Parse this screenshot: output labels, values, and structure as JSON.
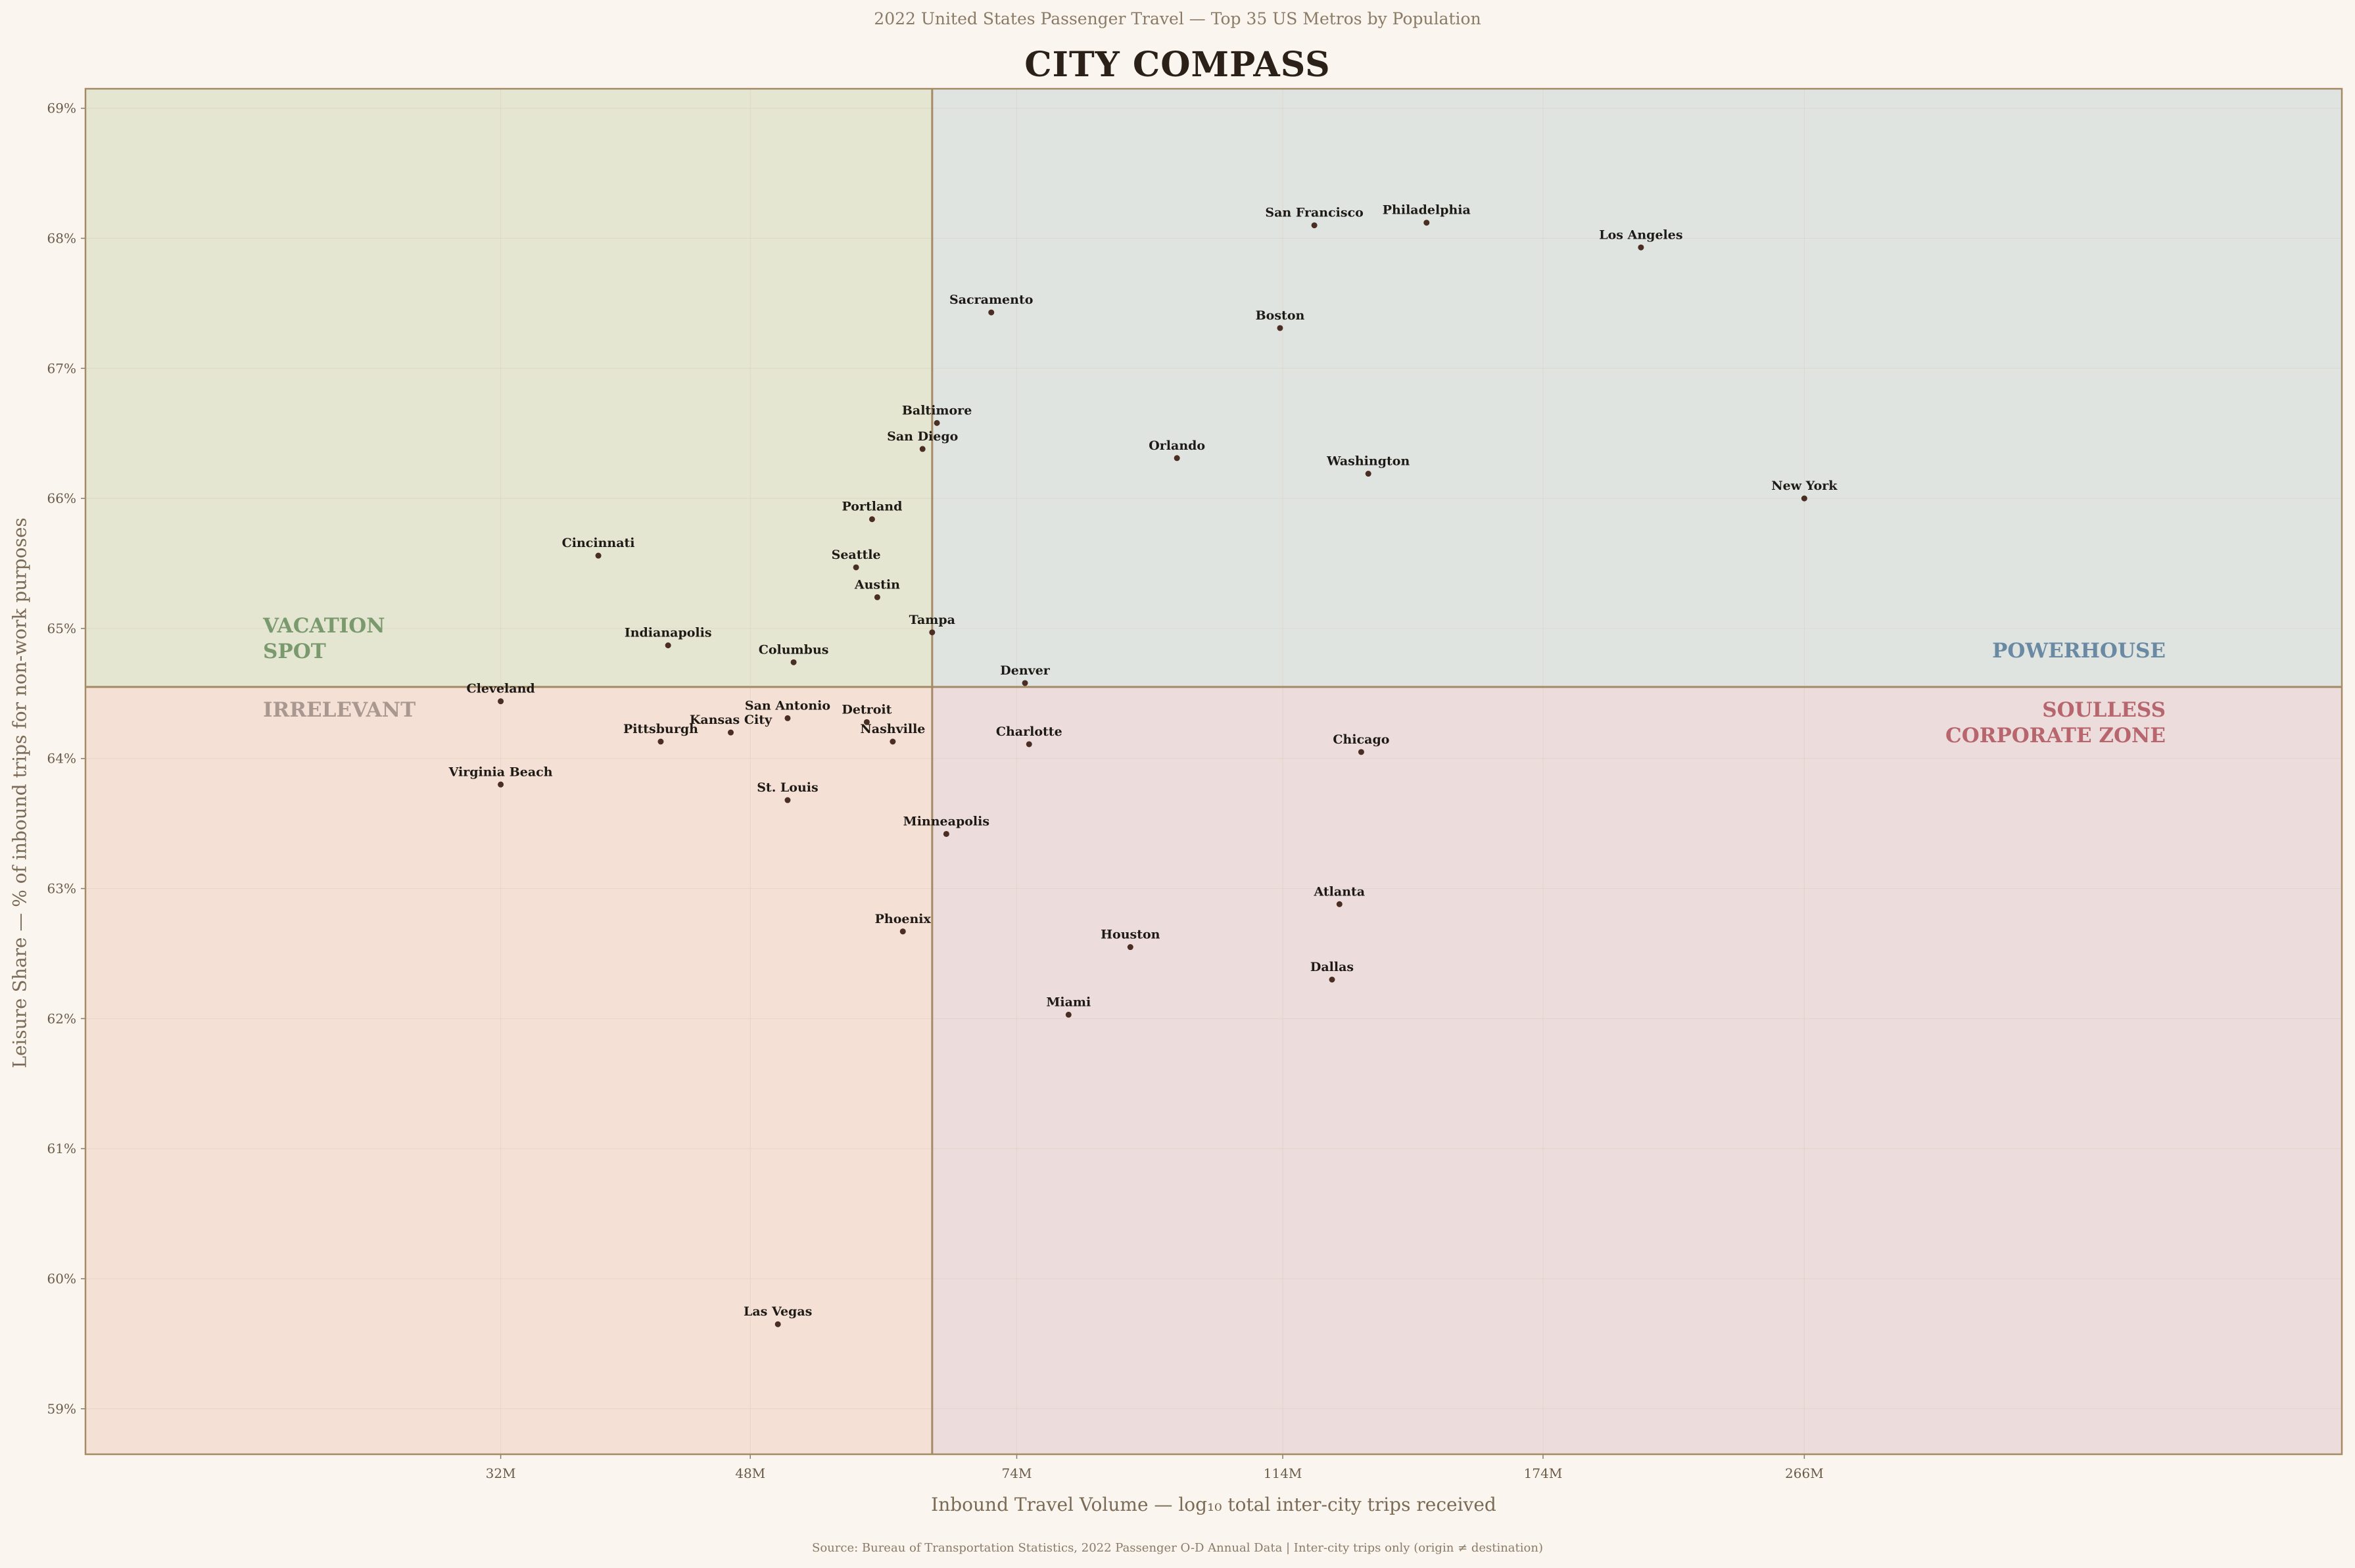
{
  "supertitle": "2022 United States Passenger Travel  —  Top 35 US Metros by Population",
  "title": "CITY COMPASS",
  "source": "Source: Bureau of Transportation Statistics, 2022 Passenger O-D Annual Data  |  Inter-city trips only (origin ≠ destination)",
  "colors": {
    "vacation": "#e4e6d2",
    "powerhouse": "#e0e4e1",
    "irrelevant": "#f5e0d5",
    "soulless": "#ecdcdc",
    "divider": "#a58a66",
    "point": "#4a2e24",
    "vacation_label": "#7a9a6e",
    "powerhouse_label": "#6a8aa4",
    "irrelevant_label": "#a89890",
    "soulless_label": "#b8666e"
  },
  "chart_data": {
    "type": "scatter",
    "title": "CITY COMPASS",
    "xlabel": "Inbound Travel Volume  —  log₁₀ total inter-city trips received",
    "ylabel": "Leisure Share  —  % of inbound trips for non-work purposes",
    "x_scale": "log10",
    "x_unit": "M trips",
    "xlim": [
      16.3,
      637
    ],
    "ylim": [
      58.65,
      69.15
    ],
    "x_ticks": [
      32,
      48,
      74,
      114,
      174,
      266
    ],
    "x_tick_labels": [
      "32M",
      "48M",
      "74M",
      "114M",
      "174M",
      "266M"
    ],
    "y_ticks": [
      59,
      60,
      61,
      62,
      63,
      64,
      65,
      66,
      67,
      68,
      69
    ],
    "y_tick_labels": [
      "59%",
      "60%",
      "61%",
      "62%",
      "63%",
      "64%",
      "65%",
      "66%",
      "67%",
      "68%",
      "69%"
    ],
    "grid": true,
    "divider_x": 64.5,
    "divider_y": 64.55,
    "quadrants": [
      {
        "label_lines": [
          "VACATION",
          "SPOT"
        ],
        "position": "left-middle"
      },
      {
        "label_lines": [
          "POWERHOUSE"
        ],
        "position": "right-middle"
      },
      {
        "label_lines": [
          "IRRELEVANT"
        ],
        "position": "left-middle"
      },
      {
        "label_lines": [
          "SOULLESS",
          "CORPORATE ZONE"
        ],
        "position": "right-middle"
      }
    ],
    "points": [
      {
        "name": "Philadelphia",
        "x": 144,
        "y": 68.12
      },
      {
        "name": "San Francisco",
        "x": 120,
        "y": 68.1
      },
      {
        "name": "Los Angeles",
        "x": 204,
        "y": 67.93
      },
      {
        "name": "Sacramento",
        "x": 71,
        "y": 67.43
      },
      {
        "name": "Boston",
        "x": 113.5,
        "y": 67.31
      },
      {
        "name": "Baltimore",
        "x": 65,
        "y": 66.58
      },
      {
        "name": "San Diego",
        "x": 63.5,
        "y": 66.38
      },
      {
        "name": "Orlando",
        "x": 96,
        "y": 66.31
      },
      {
        "name": "Washington",
        "x": 131,
        "y": 66.19
      },
      {
        "name": "New York",
        "x": 266,
        "y": 66.0
      },
      {
        "name": "Portland",
        "x": 58.5,
        "y": 65.84
      },
      {
        "name": "Cincinnati",
        "x": 37.5,
        "y": 65.56
      },
      {
        "name": "Seattle",
        "x": 57,
        "y": 65.47
      },
      {
        "name": "Austin",
        "x": 59,
        "y": 65.24
      },
      {
        "name": "Tampa",
        "x": 64.5,
        "y": 64.97
      },
      {
        "name": "Indianapolis",
        "x": 42,
        "y": 64.87
      },
      {
        "name": "Columbus",
        "x": 51.5,
        "y": 64.74
      },
      {
        "name": "Denver",
        "x": 75,
        "y": 64.58
      },
      {
        "name": "Cleveland",
        "x": 32,
        "y": 64.44
      },
      {
        "name": "San Antonio",
        "x": 51,
        "y": 64.31
      },
      {
        "name": "Detroit",
        "x": 58,
        "y": 64.28
      },
      {
        "name": "Kansas City",
        "x": 46.5,
        "y": 64.2
      },
      {
        "name": "Pittsburgh",
        "x": 41.5,
        "y": 64.13
      },
      {
        "name": "Nashville",
        "x": 60.5,
        "y": 64.13
      },
      {
        "name": "Charlotte",
        "x": 75.5,
        "y": 64.11
      },
      {
        "name": "Chicago",
        "x": 129.5,
        "y": 64.05
      },
      {
        "name": "Virginia Beach",
        "x": 32,
        "y": 63.8
      },
      {
        "name": "St. Louis",
        "x": 51,
        "y": 63.68
      },
      {
        "name": "Minneapolis",
        "x": 66,
        "y": 63.42
      },
      {
        "name": "Atlanta",
        "x": 125,
        "y": 62.88
      },
      {
        "name": "Phoenix",
        "x": 61.5,
        "y": 62.67
      },
      {
        "name": "Houston",
        "x": 89,
        "y": 62.55
      },
      {
        "name": "Dallas",
        "x": 123.5,
        "y": 62.3
      },
      {
        "name": "Miami",
        "x": 80.5,
        "y": 62.03
      },
      {
        "name": "Las Vegas",
        "x": 50.2,
        "y": 59.65
      }
    ]
  }
}
